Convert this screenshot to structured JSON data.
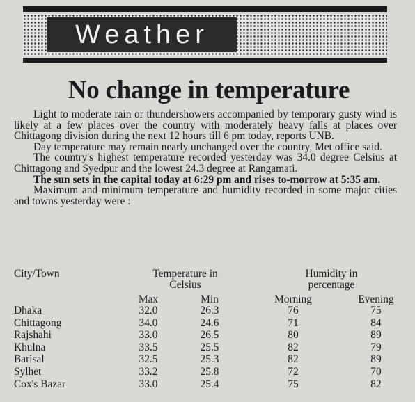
{
  "header": {
    "section": "Weather"
  },
  "headline": "No change in temperature",
  "paragraphs": [
    {
      "text": "Light to moderate rain or thundershowers accompanied by temporary gusty wind is likely at a few places over the country with moderately heavy falls at places over Chittagong division during the next 12 hours till 6 pm today, reports UNB.",
      "bold": false
    },
    {
      "text": "Day temperature may remain nearly unchanged over the country, Met office said.",
      "bold": false
    },
    {
      "text": "The country's highest temperature recorded yesterday was 34.0 degree Celsius at Chittagong and Syedpur and the lowest 24.3 degree at Rangamati.",
      "bold": false
    },
    {
      "text": "The sun sets in the capital today at 6:29 pm and rises to-morrow at 5:35 am.",
      "bold": true
    },
    {
      "text": "Maximum and minimum temperature and humidity recorded in some major cities and towns yesterday were :",
      "bold": false
    }
  ],
  "table": {
    "headers": {
      "city": "City/Town",
      "temperature": "Temperature in Celsius",
      "humidity": "Humidity in percentage"
    },
    "subheaders": [
      "Max",
      "Min",
      "Morning",
      "Evening"
    ],
    "rows": [
      [
        "Dhaka",
        "32.0",
        "26.3",
        "76",
        "75"
      ],
      [
        "Chittagong",
        "34.0",
        "24.6",
        "71",
        "84"
      ],
      [
        "Rajshahi",
        "33.0",
        "26.5",
        "80",
        "89"
      ],
      [
        "Khulna",
        "33.5",
        "25.5",
        "82",
        "79"
      ],
      [
        "Barisal",
        "32.5",
        "25.3",
        "82",
        "89"
      ],
      [
        "Sylhet",
        "33.2",
        "25.8",
        "72",
        "70"
      ],
      [
        "Cox's Bazar",
        "33.0",
        "25.4",
        "75",
        "82"
      ]
    ]
  }
}
